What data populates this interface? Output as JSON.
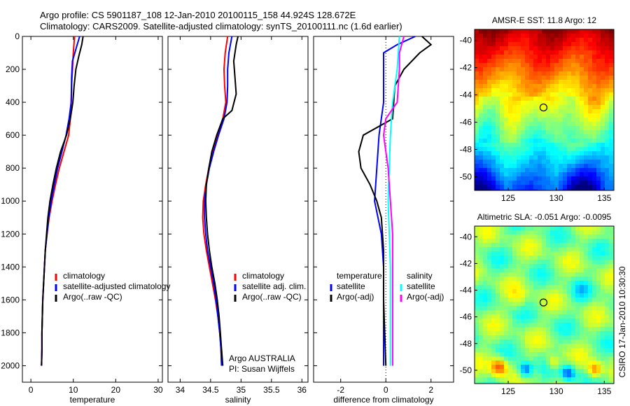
{
  "header": {
    "line1": "Argo profile: CS 5901187_108 12-Jan-2010 20100115_158 44.924S 128.672E",
    "line2": "Climatology: CARS2009. Satellite-adjusted climatology: synTS_20100111.nc (1.6d earlier)"
  },
  "side_label": "CSIRO 17-Jan-2010 10:30:30",
  "colors": {
    "climatology": "#ff0000",
    "satellite": "#0000ff",
    "argo": "#000000",
    "sat_diff": "#00ffff",
    "argo_sal_diff": "#ff00ff"
  },
  "chart_data": [
    {
      "type": "line",
      "xlabel": "temperature",
      "xlim": [
        -2,
        31
      ],
      "xticks": [
        0,
        10,
        20,
        30
      ],
      "ylim": [
        0,
        2100
      ],
      "yticks": [
        0,
        200,
        400,
        600,
        800,
        1000,
        1200,
        1400,
        1600,
        1800,
        2000
      ],
      "y_reversed": true,
      "legend": [
        "climatology",
        "satellite-adjusted climatology",
        "Argo(..raw -QC)"
      ],
      "series": [
        {
          "name": "climatology",
          "color": "#ff0000",
          "points": [
            [
              10.3,
              0
            ],
            [
              10.0,
              100
            ],
            [
              9.8,
              200
            ],
            [
              9.6,
              300
            ],
            [
              9.5,
              400
            ],
            [
              9.3,
              500
            ],
            [
              8.9,
              600
            ],
            [
              7.8,
              700
            ],
            [
              6.7,
              800
            ],
            [
              5.8,
              900
            ],
            [
              5.0,
              1000
            ],
            [
              4.3,
              1100
            ],
            [
              3.8,
              1200
            ],
            [
              3.4,
              1300
            ],
            [
              3.2,
              1400
            ],
            [
              3.0,
              1500
            ],
            [
              2.8,
              1600
            ],
            [
              2.7,
              1700
            ],
            [
              2.6,
              1800
            ],
            [
              2.6,
              1900
            ],
            [
              2.5,
              2000
            ]
          ]
        },
        {
          "name": "satellite-adjusted climatology",
          "color": "#0000ff",
          "points": [
            [
              11.5,
              0
            ],
            [
              10.8,
              60
            ],
            [
              9.8,
              150
            ],
            [
              9.6,
              250
            ],
            [
              9.5,
              400
            ],
            [
              9.0,
              500
            ],
            [
              8.3,
              600
            ],
            [
              7.3,
              700
            ],
            [
              6.3,
              800
            ],
            [
              5.5,
              900
            ],
            [
              4.8,
              1000
            ],
            [
              4.2,
              1100
            ],
            [
              3.8,
              1200
            ],
            [
              3.4,
              1300
            ],
            [
              3.2,
              1400
            ],
            [
              3.0,
              1500
            ],
            [
              2.8,
              1600
            ],
            [
              2.7,
              1700
            ],
            [
              2.6,
              1800
            ],
            [
              2.6,
              1900
            ],
            [
              2.5,
              2000
            ]
          ]
        },
        {
          "name": "Argo(..raw -QC)",
          "color": "#000000",
          "points": [
            [
              12.3,
              0
            ],
            [
              12.0,
              50
            ],
            [
              11.3,
              120
            ],
            [
              10.6,
              200
            ],
            [
              10.2,
              300
            ],
            [
              9.9,
              400
            ],
            [
              9.3,
              500
            ],
            [
              8.4,
              600
            ],
            [
              7.0,
              700
            ],
            [
              6.0,
              800
            ],
            [
              5.2,
              900
            ],
            [
              4.5,
              1000
            ],
            [
              4.0,
              1100
            ],
            [
              3.7,
              1200
            ],
            [
              3.4,
              1300
            ],
            [
              3.2,
              1400
            ],
            [
              3.0,
              1500
            ],
            [
              2.8,
              1600
            ],
            [
              2.7,
              1700
            ],
            [
              2.6,
              1800
            ],
            [
              2.6,
              1900
            ],
            [
              2.5,
              2000
            ]
          ]
        }
      ]
    },
    {
      "type": "line",
      "xlabel": "salinity",
      "xlim": [
        33.8,
        36.1
      ],
      "xticks": [
        34,
        34.5,
        35,
        35.5,
        36
      ],
      "ylim": [
        0,
        2100
      ],
      "y_reversed": true,
      "legend": [
        "climatology",
        "satellite adj. clim.",
        "Argo(..raw -QC)"
      ],
      "annotation": [
        "Argo AUSTRALIA",
        "PI: Susan Wijffels"
      ],
      "series": [
        {
          "name": "climatology",
          "color": "#ff0000",
          "points": [
            [
              34.78,
              0
            ],
            [
              34.74,
              100
            ],
            [
              34.72,
              200
            ],
            [
              34.73,
              300
            ],
            [
              34.75,
              400
            ],
            [
              34.7,
              500
            ],
            [
              34.62,
              600
            ],
            [
              34.54,
              700
            ],
            [
              34.47,
              800
            ],
            [
              34.42,
              900
            ],
            [
              34.38,
              1000
            ],
            [
              34.37,
              1100
            ],
            [
              34.39,
              1200
            ],
            [
              34.43,
              1300
            ],
            [
              34.48,
              1400
            ],
            [
              34.53,
              1500
            ],
            [
              34.58,
              1600
            ],
            [
              34.62,
              1700
            ],
            [
              34.65,
              1800
            ],
            [
              34.67,
              1900
            ],
            [
              34.68,
              2000
            ]
          ]
        },
        {
          "name": "satellite adj. clim.",
          "color": "#0000ff",
          "points": [
            [
              34.85,
              0
            ],
            [
              34.8,
              100
            ],
            [
              34.78,
              200
            ],
            [
              34.78,
              300
            ],
            [
              34.77,
              400
            ],
            [
              34.72,
              500
            ],
            [
              34.63,
              600
            ],
            [
              34.55,
              700
            ],
            [
              34.48,
              800
            ],
            [
              34.43,
              900
            ],
            [
              34.4,
              1000
            ],
            [
              34.4,
              1100
            ],
            [
              34.42,
              1200
            ],
            [
              34.45,
              1300
            ],
            [
              34.5,
              1400
            ],
            [
              34.55,
              1500
            ],
            [
              34.59,
              1600
            ],
            [
              34.62,
              1700
            ],
            [
              34.65,
              1800
            ],
            [
              34.67,
              1900
            ],
            [
              34.68,
              2000
            ]
          ]
        },
        {
          "name": "Argo(..raw -QC)",
          "color": "#000000",
          "points": [
            [
              34.95,
              0
            ],
            [
              34.92,
              50
            ],
            [
              34.88,
              150
            ],
            [
              34.9,
              250
            ],
            [
              34.92,
              350
            ],
            [
              34.85,
              450
            ],
            [
              34.7,
              500
            ],
            [
              34.6,
              600
            ],
            [
              34.52,
              700
            ],
            [
              34.47,
              800
            ],
            [
              34.43,
              900
            ],
            [
              34.42,
              1000
            ],
            [
              34.43,
              1100
            ],
            [
              34.45,
              1200
            ],
            [
              34.48,
              1300
            ],
            [
              34.52,
              1400
            ],
            [
              34.57,
              1500
            ],
            [
              34.61,
              1600
            ],
            [
              34.64,
              1700
            ],
            [
              34.66,
              1800
            ],
            [
              34.68,
              1900
            ],
            [
              34.7,
              2000
            ]
          ]
        }
      ]
    },
    {
      "type": "line",
      "xlabel": "difference from climatology",
      "xlim": [
        -3.2,
        3.0
      ],
      "xticks": [
        -2,
        0,
        2
      ],
      "ylim": [
        0,
        2100
      ],
      "y_reversed": true,
      "legend": [
        "temperature",
        "satellite",
        "Argo(-adj)",
        "salinity",
        "satellite",
        "Argo(-adj)"
      ],
      "series": [
        {
          "name": "satellite",
          "color": "#0000ff",
          "points": [
            [
              1.3,
              0
            ],
            [
              0.5,
              50
            ],
            [
              -0.1,
              100
            ],
            [
              -0.1,
              200
            ],
            [
              -0.1,
              400
            ],
            [
              -0.3,
              600
            ],
            [
              -0.4,
              800
            ],
            [
              -0.5,
              1000
            ],
            [
              -0.2,
              1200
            ],
            [
              -0.1,
              1400
            ],
            [
              -0.1,
              1600
            ],
            [
              -0.1,
              1800
            ],
            [
              -0.1,
              2000
            ]
          ]
        },
        {
          "name": "Argo(-adj)",
          "color": "#000000",
          "points": [
            [
              1.6,
              0
            ],
            [
              2.0,
              50
            ],
            [
              1.5,
              100
            ],
            [
              0.8,
              200
            ],
            [
              0.4,
              300
            ],
            [
              0.3,
              500
            ],
            [
              -1.0,
              600
            ],
            [
              -1.2,
              700
            ],
            [
              -1.1,
              800
            ],
            [
              -0.7,
              900
            ],
            [
              -0.4,
              1000
            ],
            [
              -0.2,
              1100
            ],
            [
              -0.1,
              1300
            ],
            [
              -0.1,
              1600
            ],
            [
              -0.05,
              1800
            ],
            [
              0,
              2000
            ]
          ]
        },
        {
          "name": "satellite",
          "color": "#00ffff",
          "points": [
            [
              0.6,
              0
            ],
            [
              0.5,
              200
            ],
            [
              0.3,
              400
            ],
            [
              0.2,
              600
            ],
            [
              0.15,
              800
            ],
            [
              0.1,
              1000
            ],
            [
              0.15,
              1200
            ],
            [
              0.2,
              1400
            ],
            [
              0.2,
              1600
            ],
            [
              0.2,
              1800
            ],
            [
              0.2,
              2000
            ]
          ]
        },
        {
          "name": "Argo(-adj)",
          "color": "#ff00ff",
          "points": [
            [
              0.8,
              0
            ],
            [
              0.6,
              100
            ],
            [
              0.6,
              200
            ],
            [
              0.55,
              300
            ],
            [
              0.5,
              400
            ],
            [
              0.0,
              500
            ],
            [
              -0.1,
              600
            ],
            [
              0.1,
              800
            ],
            [
              0.2,
              1000
            ],
            [
              0.3,
              1200
            ],
            [
              0.3,
              1400
            ],
            [
              0.3,
              1600
            ],
            [
              0.3,
              1800
            ],
            [
              0.3,
              2000
            ]
          ]
        }
      ]
    },
    {
      "type": "heatmap",
      "title": "AMSR-E SST: 11.8  Argo: 12",
      "xlim": [
        121.5,
        136
      ],
      "ylim": [
        -51,
        -39.2
      ],
      "xticks": [
        125,
        130,
        135
      ],
      "yticks": [
        -40,
        -42,
        -44,
        -46,
        -48,
        -50
      ],
      "marker": [
        128.672,
        -44.924
      ]
    },
    {
      "type": "heatmap",
      "title": "Altimetric SLA: -0.051  Argo: -0.0095",
      "xlim": [
        121.5,
        136
      ],
      "ylim": [
        -51,
        -39.2
      ],
      "xticks": [
        125,
        130,
        135
      ],
      "yticks": [
        -40,
        -42,
        -44,
        -46,
        -48,
        -50
      ],
      "marker": [
        128.672,
        -44.924
      ]
    }
  ]
}
